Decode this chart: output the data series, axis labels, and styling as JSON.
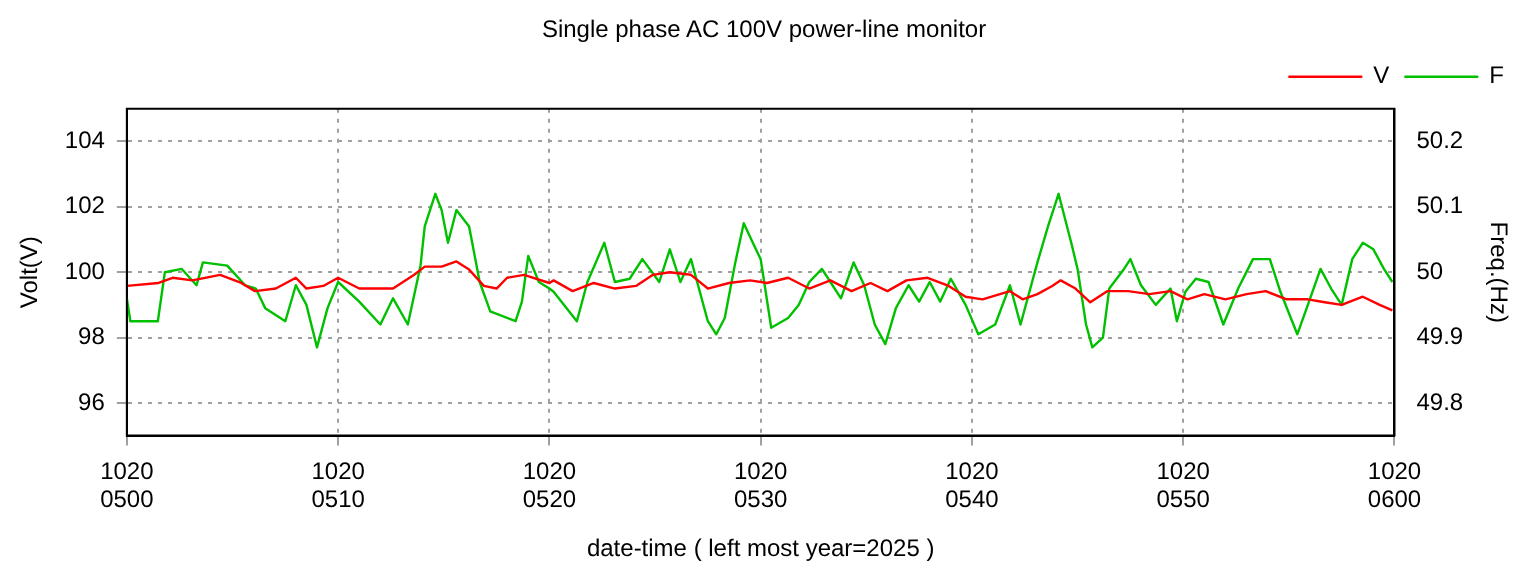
{
  "chart_data": {
    "type": "line",
    "title": "Single phase AC 100V power-line monitor",
    "xlabel": "date-time ( left most year=2025 )",
    "ylabel": "Volt(V)",
    "y2label": "Freq.(Hz)",
    "xlim": [
      "2025-10-20T05:00",
      "2025-10-20T06:00"
    ],
    "xticks": [
      {
        "value": "2025-10-20T05:00",
        "label": "1020\n0500"
      },
      {
        "value": "2025-10-20T05:10",
        "label": "1020\n0510"
      },
      {
        "value": "2025-10-20T05:20",
        "label": "1020\n0520"
      },
      {
        "value": "2025-10-20T05:30",
        "label": "1020\n0530"
      },
      {
        "value": "2025-10-20T05:40",
        "label": "1020\n0540"
      },
      {
        "value": "2025-10-20T05:50",
        "label": "1020\n0550"
      },
      {
        "value": "2025-10-20T06:00",
        "label": "1020\n0600"
      }
    ],
    "ylim": [
      95,
      105
    ],
    "yticks": [
      96,
      98,
      100,
      102,
      104
    ],
    "y2lim": [
      49.75,
      50.25
    ],
    "y2ticks": [
      49.8,
      49.9,
      50,
      50.1,
      50.2
    ],
    "grid": true,
    "legend": "top right",
    "line_style": "solid",
    "series": [
      {
        "name": "V",
        "color": "#ff0000",
        "axis": "y",
        "x": [
          "2025-10-20T05:00:00",
          "2025-10-20T05:01:30",
          "2025-10-20T05:02:10",
          "2025-10-20T05:03:06",
          "2025-10-20T05:04:25",
          "2025-10-20T05:05:25",
          "2025-10-20T05:06:04",
          "2025-10-20T05:07:03",
          "2025-10-20T05:08:00",
          "2025-10-20T05:08:30",
          "2025-10-20T05:09:18",
          "2025-10-20T05:10:00",
          "2025-10-20T05:11:00",
          "2025-10-20T05:12:36",
          "2025-10-20T05:13:36",
          "2025-10-20T05:14:06",
          "2025-10-20T05:14:54",
          "2025-10-20T05:15:36",
          "2025-10-20T05:16:12",
          "2025-10-20T05:16:54",
          "2025-10-20T05:17:30",
          "2025-10-20T05:18:00",
          "2025-10-20T05:18:48",
          "2025-10-20T05:20:00",
          "2025-10-20T05:20:12",
          "2025-10-20T05:21:06",
          "2025-10-20T05:22:06",
          "2025-10-20T05:23:06",
          "2025-10-20T05:24:06",
          "2025-10-20T05:24:54",
          "2025-10-20T05:25:42",
          "2025-10-20T05:26:42",
          "2025-10-20T05:27:30",
          "2025-10-20T05:28:30",
          "2025-10-20T05:29:30",
          "2025-10-20T05:30:18",
          "2025-10-20T05:31:18",
          "2025-10-20T05:32:18",
          "2025-10-20T05:33:18",
          "2025-10-20T05:34:18",
          "2025-10-20T05:35:12",
          "2025-10-20T05:36:00",
          "2025-10-20T05:36:54",
          "2025-10-20T05:37:54",
          "2025-10-20T05:38:54",
          "2025-10-20T05:39:42",
          "2025-10-20T05:40:30",
          "2025-10-20T05:41:48",
          "2025-10-20T05:42:24",
          "2025-10-20T05:43:06",
          "2025-10-20T05:43:48",
          "2025-10-20T05:44:12",
          "2025-10-20T05:44:54",
          "2025-10-20T05:45:36",
          "2025-10-20T05:46:24",
          "2025-10-20T05:47:24",
          "2025-10-20T05:48:24",
          "2025-10-20T05:49:24",
          "2025-10-20T05:50:12",
          "2025-10-20T05:51:00",
          "2025-10-20T05:52:00",
          "2025-10-20T05:53:00",
          "2025-10-20T05:53:54",
          "2025-10-20T05:54:54",
          "2025-10-20T05:55:54",
          "2025-10-20T05:56:42",
          "2025-10-20T05:57:30",
          "2025-10-20T05:58:30",
          "2025-10-20T05:59:18",
          "2025-10-20T05:59:54"
        ],
        "values": [
          99.58,
          99.67,
          99.83,
          99.75,
          99.92,
          99.67,
          99.42,
          99.5,
          99.83,
          99.5,
          99.58,
          99.83,
          99.5,
          99.5,
          99.92,
          100.17,
          100.17,
          100.33,
          100.08,
          99.58,
          99.5,
          99.83,
          99.92,
          99.67,
          99.75,
          99.42,
          99.67,
          99.5,
          99.58,
          99.92,
          100.0,
          99.92,
          99.5,
          99.67,
          99.75,
          99.67,
          99.83,
          99.5,
          99.75,
          99.42,
          99.67,
          99.42,
          99.75,
          99.83,
          99.58,
          99.25,
          99.17,
          99.42,
          99.17,
          99.33,
          99.58,
          99.75,
          99.5,
          99.08,
          99.42,
          99.42,
          99.33,
          99.42,
          99.17,
          99.33,
          99.17,
          99.33,
          99.42,
          99.17,
          99.17,
          99.08,
          99.0,
          99.25,
          99.0,
          98.83
        ]
      },
      {
        "name": "F",
        "color": "#00c000",
        "axis": "y2",
        "x": [
          "2025-10-20T05:00:00",
          "2025-10-20T05:00:10",
          "2025-10-20T05:01:28",
          "2025-10-20T05:01:48",
          "2025-10-20T05:02:36",
          "2025-10-20T05:03:18",
          "2025-10-20T05:03:36",
          "2025-10-20T05:04:45",
          "2025-10-20T05:05:36",
          "2025-10-20T05:06:06",
          "2025-10-20T05:06:33",
          "2025-10-20T05:07:30",
          "2025-10-20T05:08:00",
          "2025-10-20T05:08:30",
          "2025-10-20T05:09:00",
          "2025-10-20T05:09:30",
          "2025-10-20T05:10:00",
          "2025-10-20T05:11:00",
          "2025-10-20T05:12:00",
          "2025-10-20T05:12:36",
          "2025-10-20T05:13:18",
          "2025-10-20T05:13:54",
          "2025-10-20T05:14:06",
          "2025-10-20T05:14:36",
          "2025-10-20T05:14:54",
          "2025-10-20T05:15:12",
          "2025-10-20T05:15:36",
          "2025-10-20T05:16:12",
          "2025-10-20T05:16:42",
          "2025-10-20T05:17:12",
          "2025-10-20T05:18:24",
          "2025-10-20T05:18:42",
          "2025-10-20T05:19:00",
          "2025-10-20T05:19:30",
          "2025-10-20T05:20:00",
          "2025-10-20T05:20:12",
          "2025-10-20T05:21:18",
          "2025-10-20T05:21:48",
          "2025-10-20T05:22:36",
          "2025-10-20T05:23:06",
          "2025-10-20T05:23:48",
          "2025-10-20T05:24:24",
          "2025-10-20T05:25:12",
          "2025-10-20T05:25:42",
          "2025-10-20T05:26:12",
          "2025-10-20T05:26:42",
          "2025-10-20T05:27:30",
          "2025-10-20T05:27:54",
          "2025-10-20T05:28:18",
          "2025-10-20T05:28:48",
          "2025-10-20T05:29:12",
          "2025-10-20T05:29:42",
          "2025-10-20T05:30:00",
          "2025-10-20T05:30:30",
          "2025-10-20T05:31:18",
          "2025-10-20T05:31:48",
          "2025-10-20T05:32:18",
          "2025-10-20T05:32:54",
          "2025-10-20T05:33:24",
          "2025-10-20T05:33:48",
          "2025-10-20T05:34:24",
          "2025-10-20T05:34:54",
          "2025-10-20T05:35:24",
          "2025-10-20T05:35:54",
          "2025-10-20T05:36:24",
          "2025-10-20T05:37:00",
          "2025-10-20T05:37:30",
          "2025-10-20T05:38:00",
          "2025-10-20T05:38:30",
          "2025-10-20T05:39:00",
          "2025-10-20T05:39:42",
          "2025-10-20T05:40:18",
          "2025-10-20T05:41:06",
          "2025-10-20T05:41:48",
          "2025-10-20T05:42:18",
          "2025-10-20T05:43:06",
          "2025-10-20T05:43:36",
          "2025-10-20T05:44:06",
          "2025-10-20T05:44:42",
          "2025-10-20T05:45:00",
          "2025-10-20T05:45:24",
          "2025-10-20T05:45:42",
          "2025-10-20T05:46:12",
          "2025-10-20T05:46:30",
          "2025-10-20T05:47:12",
          "2025-10-20T05:47:30",
          "2025-10-20T05:48:00",
          "2025-10-20T05:48:42",
          "2025-10-20T05:49:24",
          "2025-10-20T05:49:42",
          "2025-10-20T05:50:06",
          "2025-10-20T05:50:36",
          "2025-10-20T05:51:12",
          "2025-10-20T05:51:54",
          "2025-10-20T05:52:36",
          "2025-10-20T05:53:18",
          "2025-10-20T05:54:06",
          "2025-10-20T05:54:36",
          "2025-10-20T05:55:24",
          "2025-10-20T05:55:54",
          "2025-10-20T05:56:30",
          "2025-10-20T05:57:00",
          "2025-10-20T05:57:30",
          "2025-10-20T05:58:00",
          "2025-10-20T05:58:30",
          "2025-10-20T05:59:00",
          "2025-10-20T05:59:30",
          "2025-10-20T05:59:54"
        ],
        "values": [
          49.96,
          49.925,
          49.925,
          50.0,
          50.005,
          49.98,
          50.015,
          50.01,
          49.98,
          49.975,
          49.945,
          49.925,
          49.98,
          49.95,
          49.885,
          49.945,
          49.985,
          49.955,
          49.92,
          49.96,
          49.92,
          50.01,
          50.07,
          50.12,
          50.095,
          50.045,
          50.095,
          50.07,
          49.985,
          49.94,
          49.925,
          49.955,
          50.025,
          49.985,
          49.975,
          49.97,
          49.925,
          49.985,
          50.045,
          49.985,
          49.99,
          50.02,
          49.985,
          50.035,
          49.985,
          50.02,
          49.925,
          49.905,
          49.93,
          50.015,
          50.075,
          50.04,
          50.02,
          49.915,
          49.93,
          49.95,
          49.985,
          50.005,
          49.98,
          49.96,
          50.015,
          49.98,
          49.92,
          49.89,
          49.945,
          49.98,
          49.955,
          49.985,
          49.955,
          49.99,
          49.95,
          49.905,
          49.92,
          49.98,
          49.92,
          50.015,
          50.07,
          50.12,
          50.045,
          50.005,
          49.92,
          49.885,
          49.9,
          49.975,
          50.005,
          50.02,
          49.98,
          49.95,
          49.975,
          49.925,
          49.97,
          49.99,
          49.985,
          49.92,
          49.975,
          50.02,
          50.02,
          49.97,
          49.905,
          49.95,
          50.005,
          49.975,
          49.95,
          50.02,
          50.045,
          50.035,
          50.005,
          49.985
        ]
      }
    ]
  }
}
